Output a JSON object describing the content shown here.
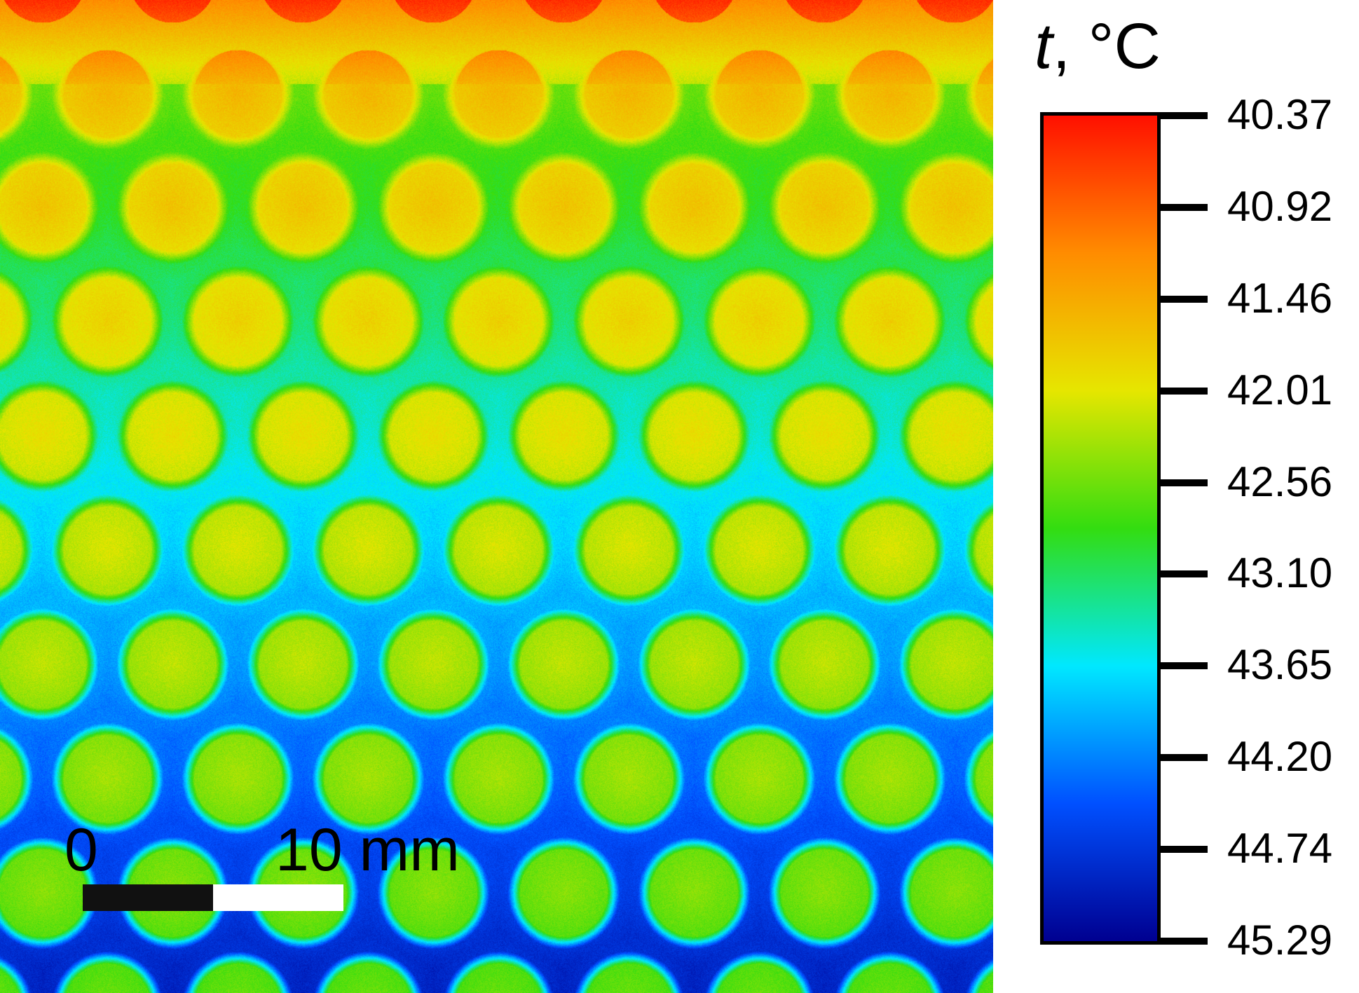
{
  "figure": {
    "content": "thermal map of a hexagonal array of circular spots",
    "scale_bar": {
      "zero_label": "0",
      "end_label": "10 mm"
    },
    "colorbar": {
      "variable": "t",
      "unit": ", °C",
      "colors_top_to_bottom": [
        "#ff1000",
        "#ff8c00",
        "#e6e600",
        "#33dd10",
        "#00e8ff",
        "#0050ff",
        "#000090"
      ],
      "ticks": [
        "40.37",
        "40.92",
        "41.46",
        "42.01",
        "42.56",
        "43.10",
        "43.65",
        "44.20",
        "44.74",
        "45.29"
      ]
    }
  }
}
